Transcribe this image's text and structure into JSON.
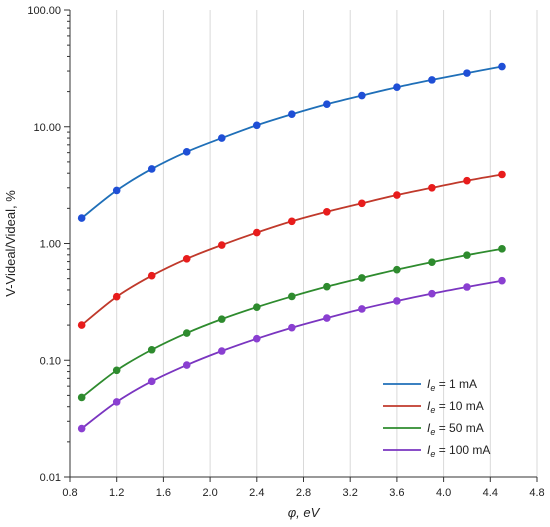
{
  "chart_data": {
    "type": "line",
    "y_scale": "log",
    "xlabel": "φ, eV",
    "ylabel": "V-Videal/Videal, %",
    "xlim": [
      0.8,
      4.8
    ],
    "ylim": [
      0.01,
      100
    ],
    "x_ticks": [
      "0.8",
      "1.2",
      "1.6",
      "2.0",
      "2.4",
      "2.8",
      "3.2",
      "3.6",
      "4.0",
      "4.4",
      "4.8"
    ],
    "y_ticks": [
      "0.01",
      "0.10",
      "1.00",
      "10.00",
      "100.00"
    ],
    "grid": "vertical only",
    "legend_position": "bottom-right",
    "x": [
      0.9,
      1.2,
      1.5,
      1.8,
      2.1,
      2.4,
      2.7,
      3.0,
      3.3,
      3.6,
      3.9,
      4.2,
      4.5
    ],
    "series": [
      {
        "name": "Ie = 1 mA",
        "legend_label": "= 1 mA",
        "color": "#1f4fd6",
        "line_color": "#1f6fb8",
        "values": [
          1.65,
          2.85,
          4.35,
          6.1,
          8.0,
          10.3,
          12.8,
          15.6,
          18.5,
          21.8,
          25.2,
          28.8,
          32.8
        ]
      },
      {
        "name": "Ie = 10 mA",
        "legend_label": "= 10 mA",
        "color": "#e81c1c",
        "line_color": "#c0392b",
        "values": [
          0.2,
          0.35,
          0.53,
          0.74,
          0.97,
          1.24,
          1.55,
          1.87,
          2.21,
          2.6,
          3.0,
          3.45,
          3.9
        ]
      },
      {
        "name": "Ie = 50 mA",
        "legend_label": "= 50 mA",
        "color": "#2e8b2e",
        "line_color": "#2e8b2e",
        "values": [
          0.048,
          0.082,
          0.123,
          0.171,
          0.225,
          0.285,
          0.352,
          0.427,
          0.507,
          0.597,
          0.692,
          0.795,
          0.9
        ]
      },
      {
        "name": "Ie = 100 mA",
        "legend_label": "= 100 mA",
        "color": "#8a3fd1",
        "line_color": "#7a35c0",
        "values": [
          0.026,
          0.044,
          0.066,
          0.091,
          0.12,
          0.153,
          0.19,
          0.23,
          0.275,
          0.322,
          0.372,
          0.424,
          0.48
        ]
      }
    ],
    "legend_symbol": "I",
    "legend_subscript": "e"
  }
}
